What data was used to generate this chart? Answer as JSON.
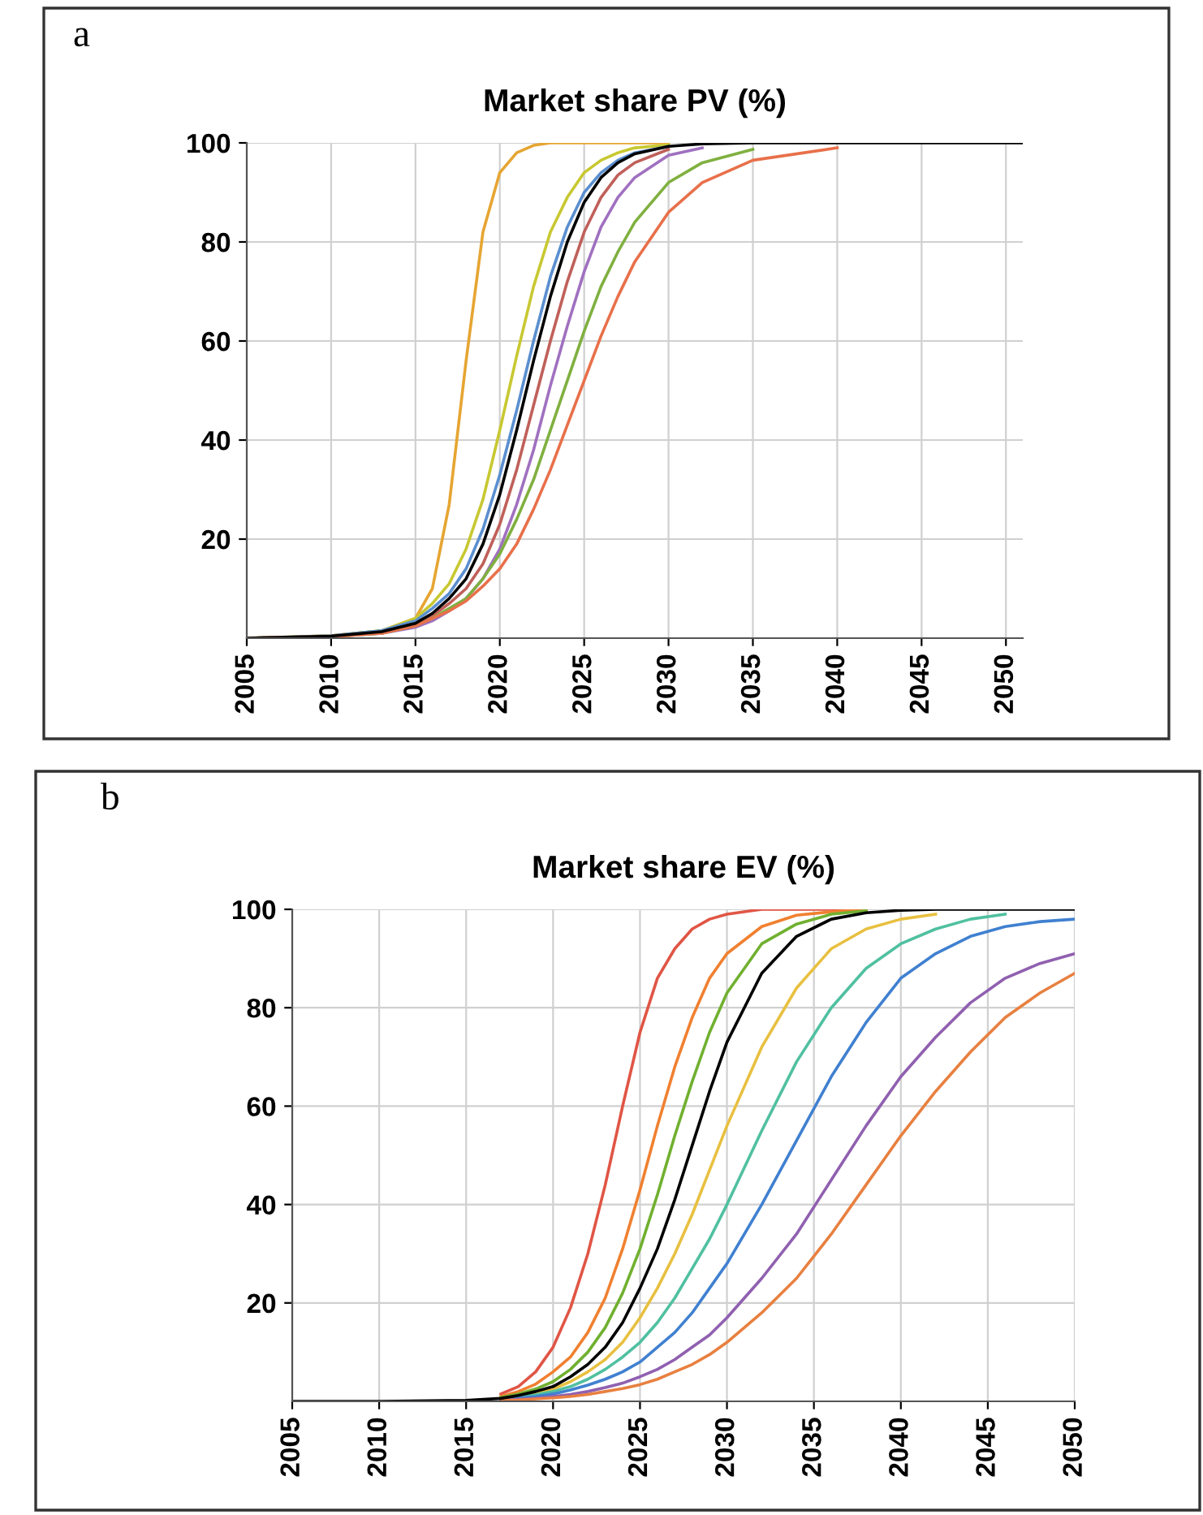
{
  "chart_data": [
    {
      "type": "line",
      "title": "Market share PV (%)",
      "annotations": [
        "a"
      ],
      "xlim": [
        2005,
        2051
      ],
      "xticks": [
        2005,
        2010,
        2015,
        2020,
        2025,
        2030,
        2035,
        2040,
        2045,
        2050
      ],
      "ylim": [
        0,
        100
      ],
      "yticks": [
        20,
        40,
        60,
        80,
        100
      ],
      "grid": true,
      "line_style": "solid",
      "x": [
        2005,
        2010,
        2013,
        2015,
        2016,
        2017,
        2018,
        2019,
        2020,
        2021,
        2022,
        2023,
        2024,
        2025,
        2026,
        2027,
        2028,
        2030,
        2032,
        2035,
        2040,
        2045,
        2051
      ],
      "series": [
        {
          "color": "#e6a532",
          "values": [
            0,
            0.5,
            1.5,
            4,
            10,
            27,
            56,
            82,
            94,
            98,
            99.5,
            100,
            100,
            100,
            100,
            100,
            100,
            100,
            null,
            null,
            null,
            null,
            null
          ]
        },
        {
          "color": "#c8c832",
          "values": [
            0,
            0.5,
            1.5,
            4,
            7,
            11,
            18,
            28,
            42,
            57,
            71,
            82,
            89,
            94,
            96.5,
            98,
            99,
            99.6,
            null,
            null,
            null,
            null,
            null
          ]
        },
        {
          "color": "#5b8fd0",
          "values": [
            0,
            0.5,
            1.5,
            3.5,
            6,
            9,
            14,
            22,
            33,
            46,
            60,
            73,
            83,
            90,
            94,
            96.5,
            98,
            99.3,
            null,
            null,
            null,
            null,
            null
          ]
        },
        {
          "color": "#c0605a",
          "values": [
            0,
            0.4,
            1.2,
            2.8,
            4.5,
            7,
            10,
            15,
            23,
            34,
            47,
            60,
            72,
            82,
            89,
            93.5,
            96,
            98.7,
            null,
            null,
            null,
            null,
            null
          ]
        },
        {
          "color": "#a070c0",
          "values": [
            0,
            0.3,
            1,
            2.2,
            3.5,
            5.5,
            8,
            12,
            18,
            27,
            38,
            51,
            63,
            74,
            83,
            89,
            93,
            97.5,
            99,
            null,
            null,
            null,
            null
          ]
        },
        {
          "color": "#80b040",
          "values": [
            0,
            0.3,
            1,
            2.5,
            4,
            6,
            8,
            12,
            17,
            24,
            32,
            42,
            52,
            62,
            71,
            78,
            84,
            92,
            96,
            98.7,
            null,
            null,
            null
          ]
        },
        {
          "color": "#e8704a",
          "values": [
            0,
            0.3,
            1,
            2.5,
            4,
            5.5,
            7.5,
            10.5,
            14,
            19,
            26,
            34,
            43,
            52,
            61,
            69,
            76,
            86,
            92,
            96.5,
            99,
            null,
            null
          ]
        },
        {
          "color": "#000000",
          "values": [
            0,
            0.4,
            1.3,
            3,
            5,
            8,
            12,
            19,
            29,
            42,
            56,
            69,
            80,
            88,
            93,
            96,
            97.8,
            99.3,
            99.8,
            100,
            100,
            100,
            100
          ]
        }
      ]
    },
    {
      "type": "line",
      "title": "Market share EV (%)",
      "annotations": [
        "b"
      ],
      "xlim": [
        2005,
        2050
      ],
      "xticks": [
        2005,
        2010,
        2015,
        2020,
        2025,
        2030,
        2035,
        2040,
        2045,
        2050
      ],
      "ylim": [
        0,
        100
      ],
      "yticks": [
        20,
        40,
        60,
        80,
        100
      ],
      "grid": true,
      "line_style": "solid",
      "x": [
        2005,
        2010,
        2015,
        2017,
        2018,
        2019,
        2020,
        2021,
        2022,
        2023,
        2024,
        2025,
        2026,
        2027,
        2028,
        2029,
        2030,
        2032,
        2034,
        2036,
        2038,
        2040,
        2042,
        2044,
        2046,
        2048,
        2050
      ],
      "series": [
        {
          "color": "#e05545",
          "values": [
            null,
            null,
            null,
            1.5,
            3,
            6,
            11,
            19,
            30,
            44,
            60,
            75,
            86,
            92,
            96,
            98,
            99,
            100,
            100,
            100,
            100,
            null,
            null,
            null,
            null,
            null,
            null
          ]
        },
        {
          "color": "#f08030",
          "values": [
            null,
            null,
            null,
            1,
            2,
            3.5,
            6,
            9,
            14,
            21,
            31,
            43,
            56,
            68,
            78,
            86,
            91,
            96.5,
            98.8,
            99.5,
            100,
            null,
            null,
            null,
            null,
            null,
            null
          ]
        },
        {
          "color": "#70b030",
          "values": [
            null,
            null,
            null,
            0.8,
            1.5,
            2.5,
            4,
            6.5,
            10,
            15,
            22,
            31,
            42,
            54,
            65,
            75,
            83,
            93,
            97,
            99,
            99.7,
            null,
            null,
            null,
            null,
            null,
            null
          ]
        },
        {
          "color": "#e8c040",
          "values": [
            null,
            null,
            null,
            0.5,
            1,
            1.6,
            2.5,
            4,
            6,
            8.5,
            12,
            17,
            23,
            30,
            38,
            47,
            56,
            72,
            84,
            92,
            96,
            98,
            99,
            null,
            null,
            null,
            null
          ]
        },
        {
          "color": "#50c0a0",
          "values": [
            null,
            null,
            null,
            0.4,
            0.8,
            1.3,
            2,
            3,
            4.5,
            6.5,
            9,
            12,
            16,
            21,
            27,
            33,
            40,
            55,
            69,
            80,
            88,
            93,
            96,
            98,
            99,
            null,
            null
          ]
        },
        {
          "color": "#4080d0",
          "values": [
            null,
            null,
            null,
            0.3,
            0.6,
            1,
            1.5,
            2.3,
            3.3,
            4.5,
            6,
            8,
            11,
            14,
            18,
            23,
            28,
            40,
            53,
            66,
            77,
            86,
            91,
            94.5,
            96.5,
            97.5,
            98
          ]
        },
        {
          "color": "#9060b0",
          "values": [
            null,
            null,
            null,
            0.2,
            0.4,
            0.6,
            1,
            1.4,
            2,
            2.8,
            3.7,
            5,
            6.5,
            8.5,
            11,
            13.5,
            17,
            25,
            34,
            45,
            56,
            66,
            74,
            81,
            86,
            89,
            91
          ]
        },
        {
          "color": "#e88040",
          "values": [
            null,
            null,
            null,
            0.2,
            0.3,
            0.5,
            0.7,
            1,
            1.4,
            2,
            2.6,
            3.4,
            4.5,
            6,
            7.5,
            9.5,
            12,
            18,
            25,
            34,
            44,
            54,
            63,
            71,
            78,
            83,
            87
          ]
        },
        {
          "color": "#000000",
          "values": [
            0,
            0,
            0.2,
            0.6,
            1.2,
            2,
            3,
            5,
            7.5,
            11,
            16,
            23,
            31,
            41,
            52,
            63,
            73,
            87,
            94.5,
            98,
            99.3,
            99.8,
            100,
            100,
            100,
            100,
            100
          ]
        }
      ]
    }
  ]
}
